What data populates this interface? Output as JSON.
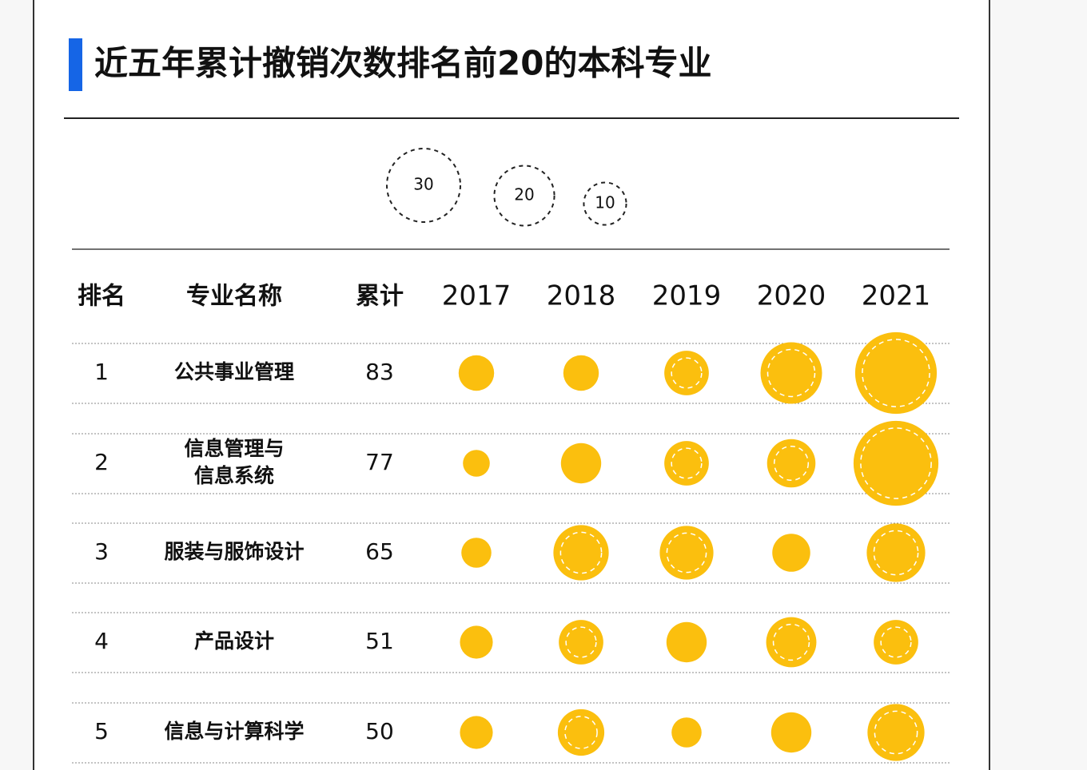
{
  "title": "近五年累计撤销次数排名前20的本科专业",
  "legend": {
    "values": [
      30,
      20,
      10
    ]
  },
  "columns": [
    "排名",
    "专业名称",
    "累计",
    "2017",
    "2018",
    "2019",
    "2020",
    "2021"
  ],
  "color": "#fbbf0e",
  "rows": [
    {
      "rank": 1,
      "name": [
        "公共事业管理"
      ],
      "total": 83,
      "values": [
        7,
        7,
        11,
        21,
        37
      ]
    },
    {
      "rank": 2,
      "name": [
        "信息管理与",
        "信息系统"
      ],
      "total": 77,
      "values": [
        4,
        9,
        11,
        13,
        40
      ]
    },
    {
      "rank": 3,
      "name": [
        "服装与服饰设计"
      ],
      "total": 65,
      "values": [
        5,
        17,
        16,
        8,
        19
      ]
    },
    {
      "rank": 4,
      "name": [
        "产品设计"
      ],
      "total": 51,
      "values": [
        6,
        11,
        9,
        14,
        11
      ]
    },
    {
      "rank": 5,
      "name": [
        "信息与计算科学"
      ],
      "total": 50,
      "values": [
        6,
        12,
        5,
        9,
        18
      ]
    }
  ]
}
